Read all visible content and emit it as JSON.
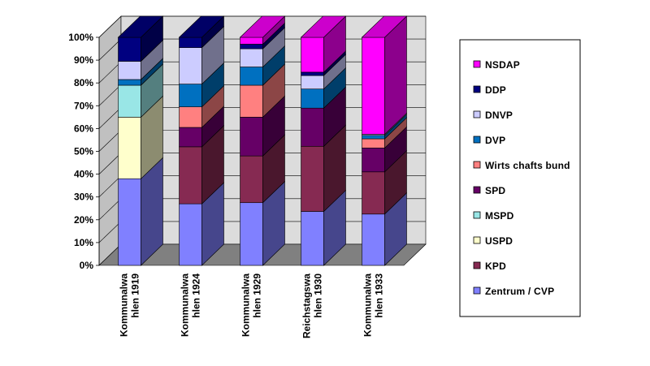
{
  "chart_data": {
    "type": "bar",
    "stacked": true,
    "percent": true,
    "three_d": true,
    "categories": [
      [
        "Kommunalwa",
        "hlen 1919"
      ],
      [
        "Kommunalwa",
        "hlen 1924"
      ],
      [
        "Kommunalwa",
        "hlen 1929"
      ],
      [
        "Reichstagswa",
        "hlen 1930"
      ],
      [
        "Kommunalwa",
        "hlen 1933"
      ]
    ],
    "yticks": [
      "0%",
      "10%",
      "20%",
      "30%",
      "40%",
      "50%",
      "60%",
      "70%",
      "80%",
      "90%",
      "100%"
    ],
    "ylim": [
      0,
      100
    ],
    "grid": true,
    "legend_position": "right",
    "series": [
      {
        "name": "Zentrum  / CVP",
        "color": "#8080ff",
        "values": [
          38,
          27,
          27.5,
          24,
          22.5
        ]
      },
      {
        "name": "KPD",
        "color": "#862a52",
        "values": [
          0,
          25,
          20.5,
          29,
          18.5
        ]
      },
      {
        "name": "USPD",
        "color": "#ffffcc",
        "values": [
          27,
          0,
          0,
          0,
          0
        ]
      },
      {
        "name": "MSPD",
        "color": "#99e6e6",
        "values": [
          14,
          0,
          0,
          0,
          0
        ]
      },
      {
        "name": "SPD",
        "color": "#660066",
        "values": [
          0,
          8.5,
          17,
          17,
          10.5
        ]
      },
      {
        "name": "Wirts chafts bund",
        "color": "#ff8080",
        "values": [
          0,
          9,
          14,
          0,
          4
        ]
      },
      {
        "name": "DVP",
        "color": "#0070c0",
        "values": [
          2.5,
          10,
          8,
          8.5,
          1.5
        ]
      },
      {
        "name": "DNVP",
        "color": "#ccccff",
        "values": [
          8,
          16,
          8,
          6,
          0.5
        ]
      },
      {
        "name": "DDP",
        "color": "#000080",
        "values": [
          10.5,
          4.5,
          2,
          1.5,
          0
        ]
      },
      {
        "name": "NSDAP",
        "color": "#ff00ff",
        "values": [
          0,
          0,
          3,
          15.5,
          42.5
        ]
      }
    ],
    "legend_order": [
      "NSDAP",
      "DDP",
      "DNVP",
      "DVP",
      "Wirts chafts bund",
      "SPD",
      "MSPD",
      "USPD",
      "KPD",
      "Zentrum  / CVP"
    ]
  }
}
